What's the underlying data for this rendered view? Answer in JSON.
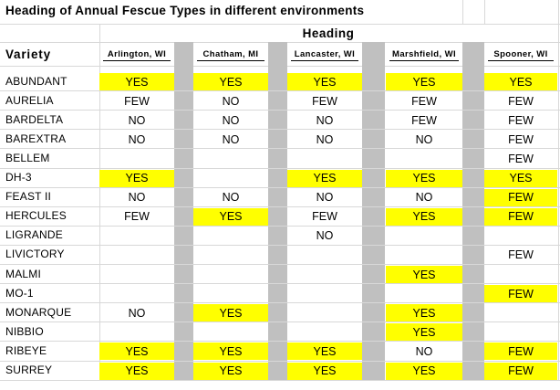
{
  "title": "Heading of Annual Fescue Types in different environments",
  "group_header": "Heading",
  "variety_header": "Variety",
  "locations": [
    "Arlington,  WI",
    "Chatham,  MI",
    "Lancaster,  WI",
    "Marshfield,  WI",
    "Spooner,  WI"
  ],
  "highlight_color": "#ffff00",
  "separator_color": "#c0c0c0",
  "rows": [
    {
      "variety": "ABUNDANT",
      "values": [
        "YES",
        "YES",
        "YES",
        "YES",
        "YES"
      ]
    },
    {
      "variety": "AURELIA",
      "values": [
        "FEW",
        "NO",
        "FEW",
        "FEW",
        "FEW"
      ]
    },
    {
      "variety": "BARDELTA",
      "values": [
        "NO",
        "NO",
        "NO",
        "FEW",
        "FEW"
      ]
    },
    {
      "variety": "BAREXTRA",
      "values": [
        "NO",
        "NO",
        "NO",
        "NO",
        "FEW"
      ]
    },
    {
      "variety": "BELLEM",
      "values": [
        "",
        "",
        "",
        "",
        "FEW"
      ]
    },
    {
      "variety": "DH-3",
      "values": [
        "YES",
        "",
        "YES",
        "YES",
        "YES"
      ]
    },
    {
      "variety": "FEAST II",
      "values": [
        "NO",
        "NO",
        "NO",
        "NO",
        "FEW"
      ]
    },
    {
      "variety": "HERCULES",
      "values": [
        "FEW",
        "YES",
        "FEW",
        "YES",
        "FEW"
      ]
    },
    {
      "variety": "LIGRANDE",
      "values": [
        "",
        "",
        "NO",
        "",
        ""
      ]
    },
    {
      "variety": "LIVICTORY",
      "values": [
        "",
        "",
        "",
        "",
        "FEW"
      ]
    },
    {
      "variety": "MALMI",
      "values": [
        "",
        "",
        "",
        "YES",
        ""
      ]
    },
    {
      "variety": "MO-1",
      "values": [
        "",
        "",
        "",
        "",
        "FEW"
      ]
    },
    {
      "variety": "MONARQUE",
      "values": [
        "NO",
        "YES",
        "",
        "YES",
        ""
      ]
    },
    {
      "variety": "NIBBIO",
      "values": [
        "",
        "",
        "",
        "YES",
        ""
      ]
    },
    {
      "variety": "RIBEYE",
      "values": [
        "YES",
        "YES",
        "YES",
        "NO",
        "FEW"
      ]
    },
    {
      "variety": "SURREY",
      "values": [
        "YES",
        "YES",
        "YES",
        "YES",
        "FEW"
      ]
    }
  ],
  "highlighted": [
    [
      true,
      true,
      true,
      true,
      true
    ],
    [
      false,
      false,
      false,
      false,
      false
    ],
    [
      false,
      false,
      false,
      false,
      false
    ],
    [
      false,
      false,
      false,
      false,
      false
    ],
    [
      false,
      false,
      false,
      false,
      false
    ],
    [
      true,
      false,
      true,
      true,
      true
    ],
    [
      false,
      false,
      false,
      false,
      true
    ],
    [
      false,
      true,
      false,
      true,
      true
    ],
    [
      false,
      false,
      false,
      false,
      false
    ],
    [
      false,
      false,
      false,
      false,
      false
    ],
    [
      false,
      false,
      false,
      true,
      false
    ],
    [
      false,
      false,
      false,
      false,
      true
    ],
    [
      false,
      true,
      false,
      true,
      false
    ],
    [
      false,
      false,
      false,
      true,
      false
    ],
    [
      true,
      true,
      true,
      false,
      true
    ],
    [
      true,
      true,
      true,
      true,
      true
    ]
  ]
}
